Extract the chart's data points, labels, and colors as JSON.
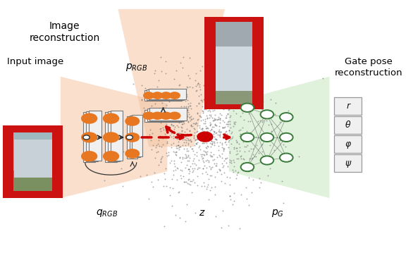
{
  "bg_color": "#ffffff",
  "encoder_color": "#f5c5a3",
  "decoder_top_color": "#f5c5a3",
  "decoder_right_color": "#c8e6c0",
  "node_orange": "#e87722",
  "node_green_edge": "#3a7a3a",
  "node_green_fill": "#ffffff",
  "red_color": "#cc0000",
  "text_input": "Input image",
  "text_recon": "Image\nreconstruction",
  "text_gate": "Gate pose\nreconstruction",
  "output_labels": [
    "r",
    "θ",
    "φ",
    "ψ"
  ]
}
